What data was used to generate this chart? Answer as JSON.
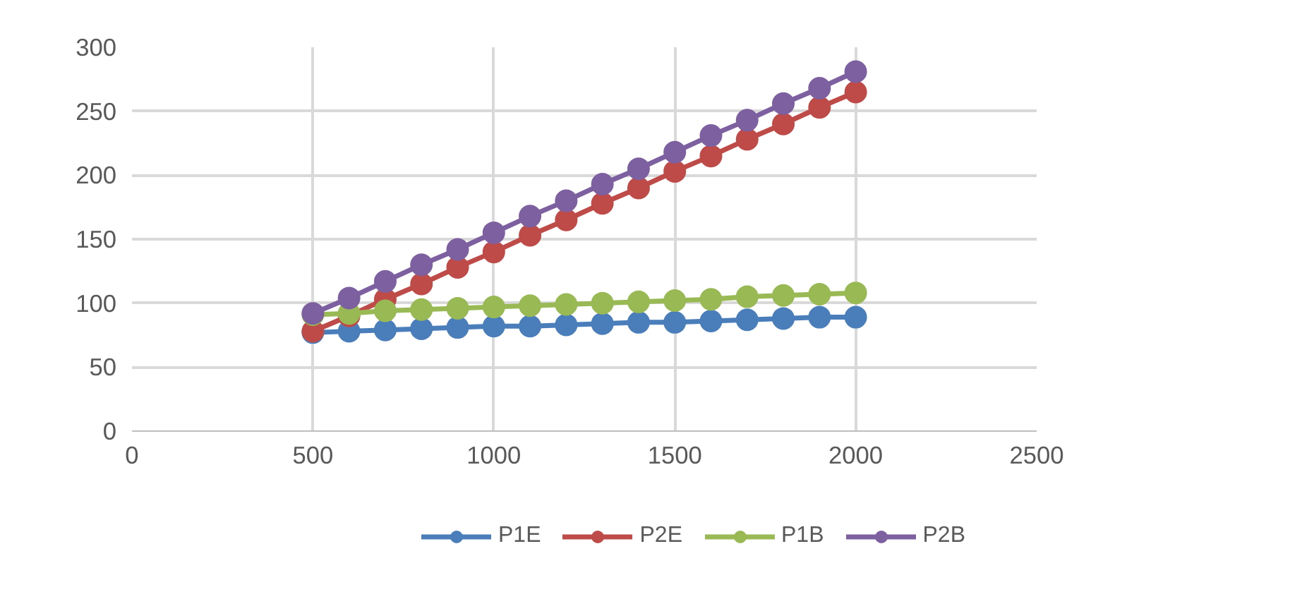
{
  "chart_data": {
    "type": "line",
    "x": [
      500,
      600,
      700,
      800,
      900,
      1000,
      1100,
      1200,
      1300,
      1400,
      1500,
      1600,
      1700,
      1800,
      1900,
      2000
    ],
    "series": [
      {
        "name": "P1E",
        "color": "#4a7ebb",
        "values": [
          77,
          78,
          79,
          80,
          81,
          82,
          82,
          83,
          84,
          85,
          85,
          86,
          87,
          88,
          89,
          89
        ]
      },
      {
        "name": "P2E",
        "color": "#be4b48",
        "values": [
          78,
          90,
          103,
          115,
          128,
          140,
          153,
          165,
          178,
          190,
          203,
          215,
          228,
          240,
          253,
          265
        ]
      },
      {
        "name": "P1B",
        "color": "#98b954",
        "values": [
          91,
          92,
          94,
          95,
          96,
          97,
          98,
          99,
          100,
          101,
          102,
          103,
          105,
          106,
          107,
          108
        ]
      },
      {
        "name": "P2B",
        "color": "#7d60a0",
        "values": [
          92,
          104,
          117,
          130,
          142,
          155,
          168,
          180,
          193,
          205,
          218,
          231,
          243,
          256,
          268,
          281
        ]
      }
    ],
    "xlim": [
      0,
      2500
    ],
    "xticks": [
      0,
      500,
      1000,
      1500,
      2000,
      2500
    ],
    "ylim": [
      0,
      300
    ],
    "yticks": [
      0,
      50,
      100,
      150,
      200,
      250,
      300
    ],
    "grid": true,
    "legend": "bottom",
    "marker": "circle",
    "line_style": "solid"
  }
}
